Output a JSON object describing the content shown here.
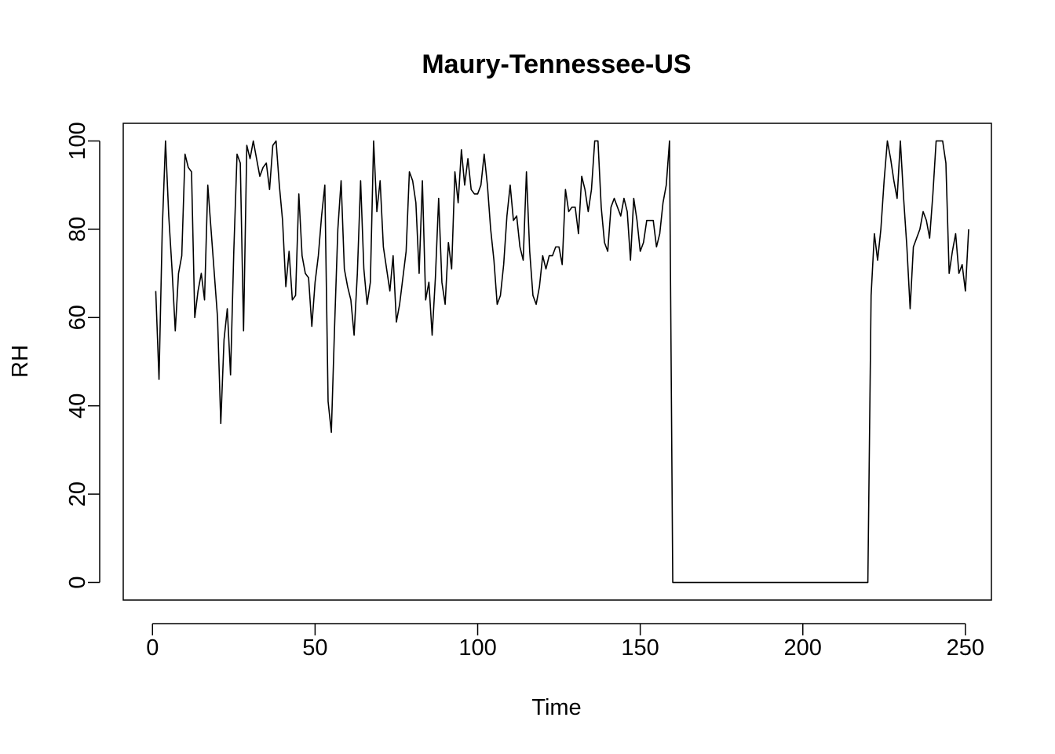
{
  "chart_data": {
    "type": "line",
    "title": "Maury-Tennessee-US",
    "xlabel": "Time",
    "ylabel": "RH",
    "xlim": [
      -9,
      258
    ],
    "ylim": [
      -4,
      104
    ],
    "x_ticks": [
      0,
      50,
      100,
      150,
      200,
      250
    ],
    "x_tick_labels": [
      "0",
      "50",
      "100",
      "150",
      "200",
      "250"
    ],
    "y_ticks": [
      0,
      20,
      40,
      60,
      80,
      100
    ],
    "y_tick_labels": [
      "0",
      "20",
      "40",
      "60",
      "80",
      "100"
    ],
    "grid": false,
    "legend": "none",
    "colors": {
      "line": "#000000",
      "frame": "#000000",
      "background": "#ffffff"
    },
    "series": [
      {
        "x_start": 1,
        "x_step": 1,
        "values": [
          66,
          46,
          80,
          100,
          83,
          71,
          57,
          70,
          74,
          97,
          94,
          93,
          60,
          66,
          70,
          64,
          90,
          80,
          70,
          60,
          36,
          55,
          62,
          47,
          75,
          97,
          95,
          57,
          99,
          96,
          100,
          96,
          92,
          94,
          95,
          89,
          99,
          100,
          90,
          82,
          67,
          75,
          64,
          65,
          88,
          74,
          70,
          69,
          58,
          68,
          74,
          83,
          90,
          41,
          34,
          58,
          80,
          91,
          71,
          67,
          64,
          56,
          70,
          91,
          71,
          63,
          68,
          100,
          84,
          91,
          76,
          71,
          66,
          74,
          59,
          63,
          69,
          75,
          93,
          91,
          86,
          70,
          91,
          64,
          68,
          56,
          69,
          87,
          68,
          63,
          77,
          71,
          93,
          86,
          98,
          90,
          96,
          89,
          88,
          88,
          90,
          97,
          90,
          80,
          73,
          63,
          65,
          72,
          83,
          90,
          82,
          83,
          76,
          73,
          93,
          75,
          65,
          63,
          67,
          74,
          71,
          74,
          74,
          76,
          76,
          72,
          89,
          84,
          85,
          85,
          79,
          92,
          89,
          84,
          89,
          100,
          100,
          85,
          77,
          75,
          85,
          87,
          85,
          83,
          87,
          84,
          73,
          87,
          82,
          75,
          77,
          82,
          82,
          82,
          76,
          79,
          86,
          90,
          100,
          0,
          0,
          0,
          0,
          0,
          0,
          0,
          0,
          0,
          0,
          0,
          0,
          0,
          0,
          0,
          0,
          0,
          0,
          0,
          0,
          0,
          0,
          0,
          0,
          0,
          0,
          0,
          0,
          0,
          0,
          0,
          0,
          0,
          0,
          0,
          0,
          0,
          0,
          0,
          0,
          0,
          0,
          0,
          0,
          0,
          0,
          0,
          0,
          0,
          0,
          0,
          0,
          0,
          0,
          0,
          0,
          0,
          0,
          0,
          0,
          0,
          65,
          79,
          73,
          80,
          91,
          100,
          96,
          91,
          87,
          100,
          87,
          76,
          62,
          76,
          78,
          80,
          84,
          82,
          78,
          88,
          100,
          100,
          100,
          95,
          70,
          75,
          79,
          70,
          72,
          66,
          80
        ]
      }
    ]
  }
}
